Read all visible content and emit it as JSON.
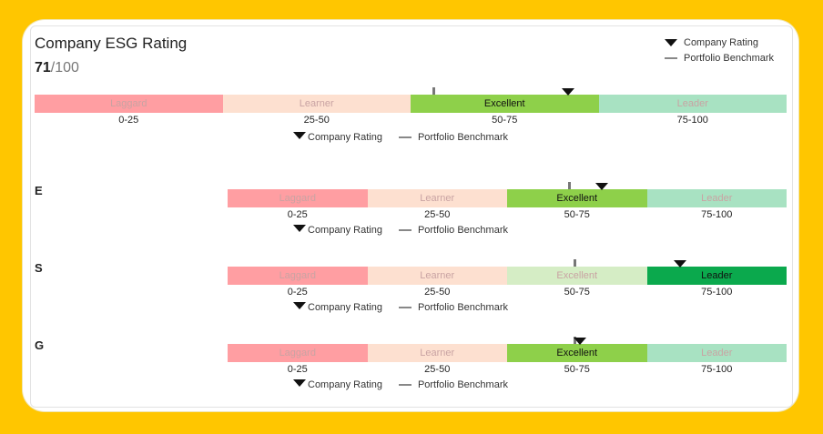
{
  "header": {
    "title": "Company ESG Rating",
    "score": "71",
    "score_max": "/100"
  },
  "legend": {
    "rating_label": "Company Rating",
    "benchmark_label": "Portfolio Benchmark"
  },
  "pillars": {
    "e": "E",
    "s": "S",
    "g": "G"
  },
  "bands": {
    "labels": [
      "Laggard",
      "Learner",
      "Excellent",
      "Leader"
    ],
    "ranges": [
      "0-25",
      "25-50",
      "50-75",
      "75-100"
    ]
  },
  "colors": {
    "laggard": "#FF9EA2",
    "learner": "#FDE0D0",
    "excellent": "#8ED04A",
    "leader_light": "#A8E2C2",
    "excellent_light": "#D5EDC5",
    "leader_active": "#0BA94D",
    "active_text": "#111111",
    "inactive_text": "#C9A3A3"
  },
  "gauges": {
    "overall": {
      "active": 2,
      "rating": 71,
      "benchmark": 53
    },
    "e": {
      "active": 2,
      "rating": 67,
      "benchmark": 61
    },
    "s": {
      "active": 3,
      "rating": 81,
      "benchmark": 62
    },
    "g": {
      "active": 2,
      "rating": 63,
      "benchmark": 62
    }
  }
}
